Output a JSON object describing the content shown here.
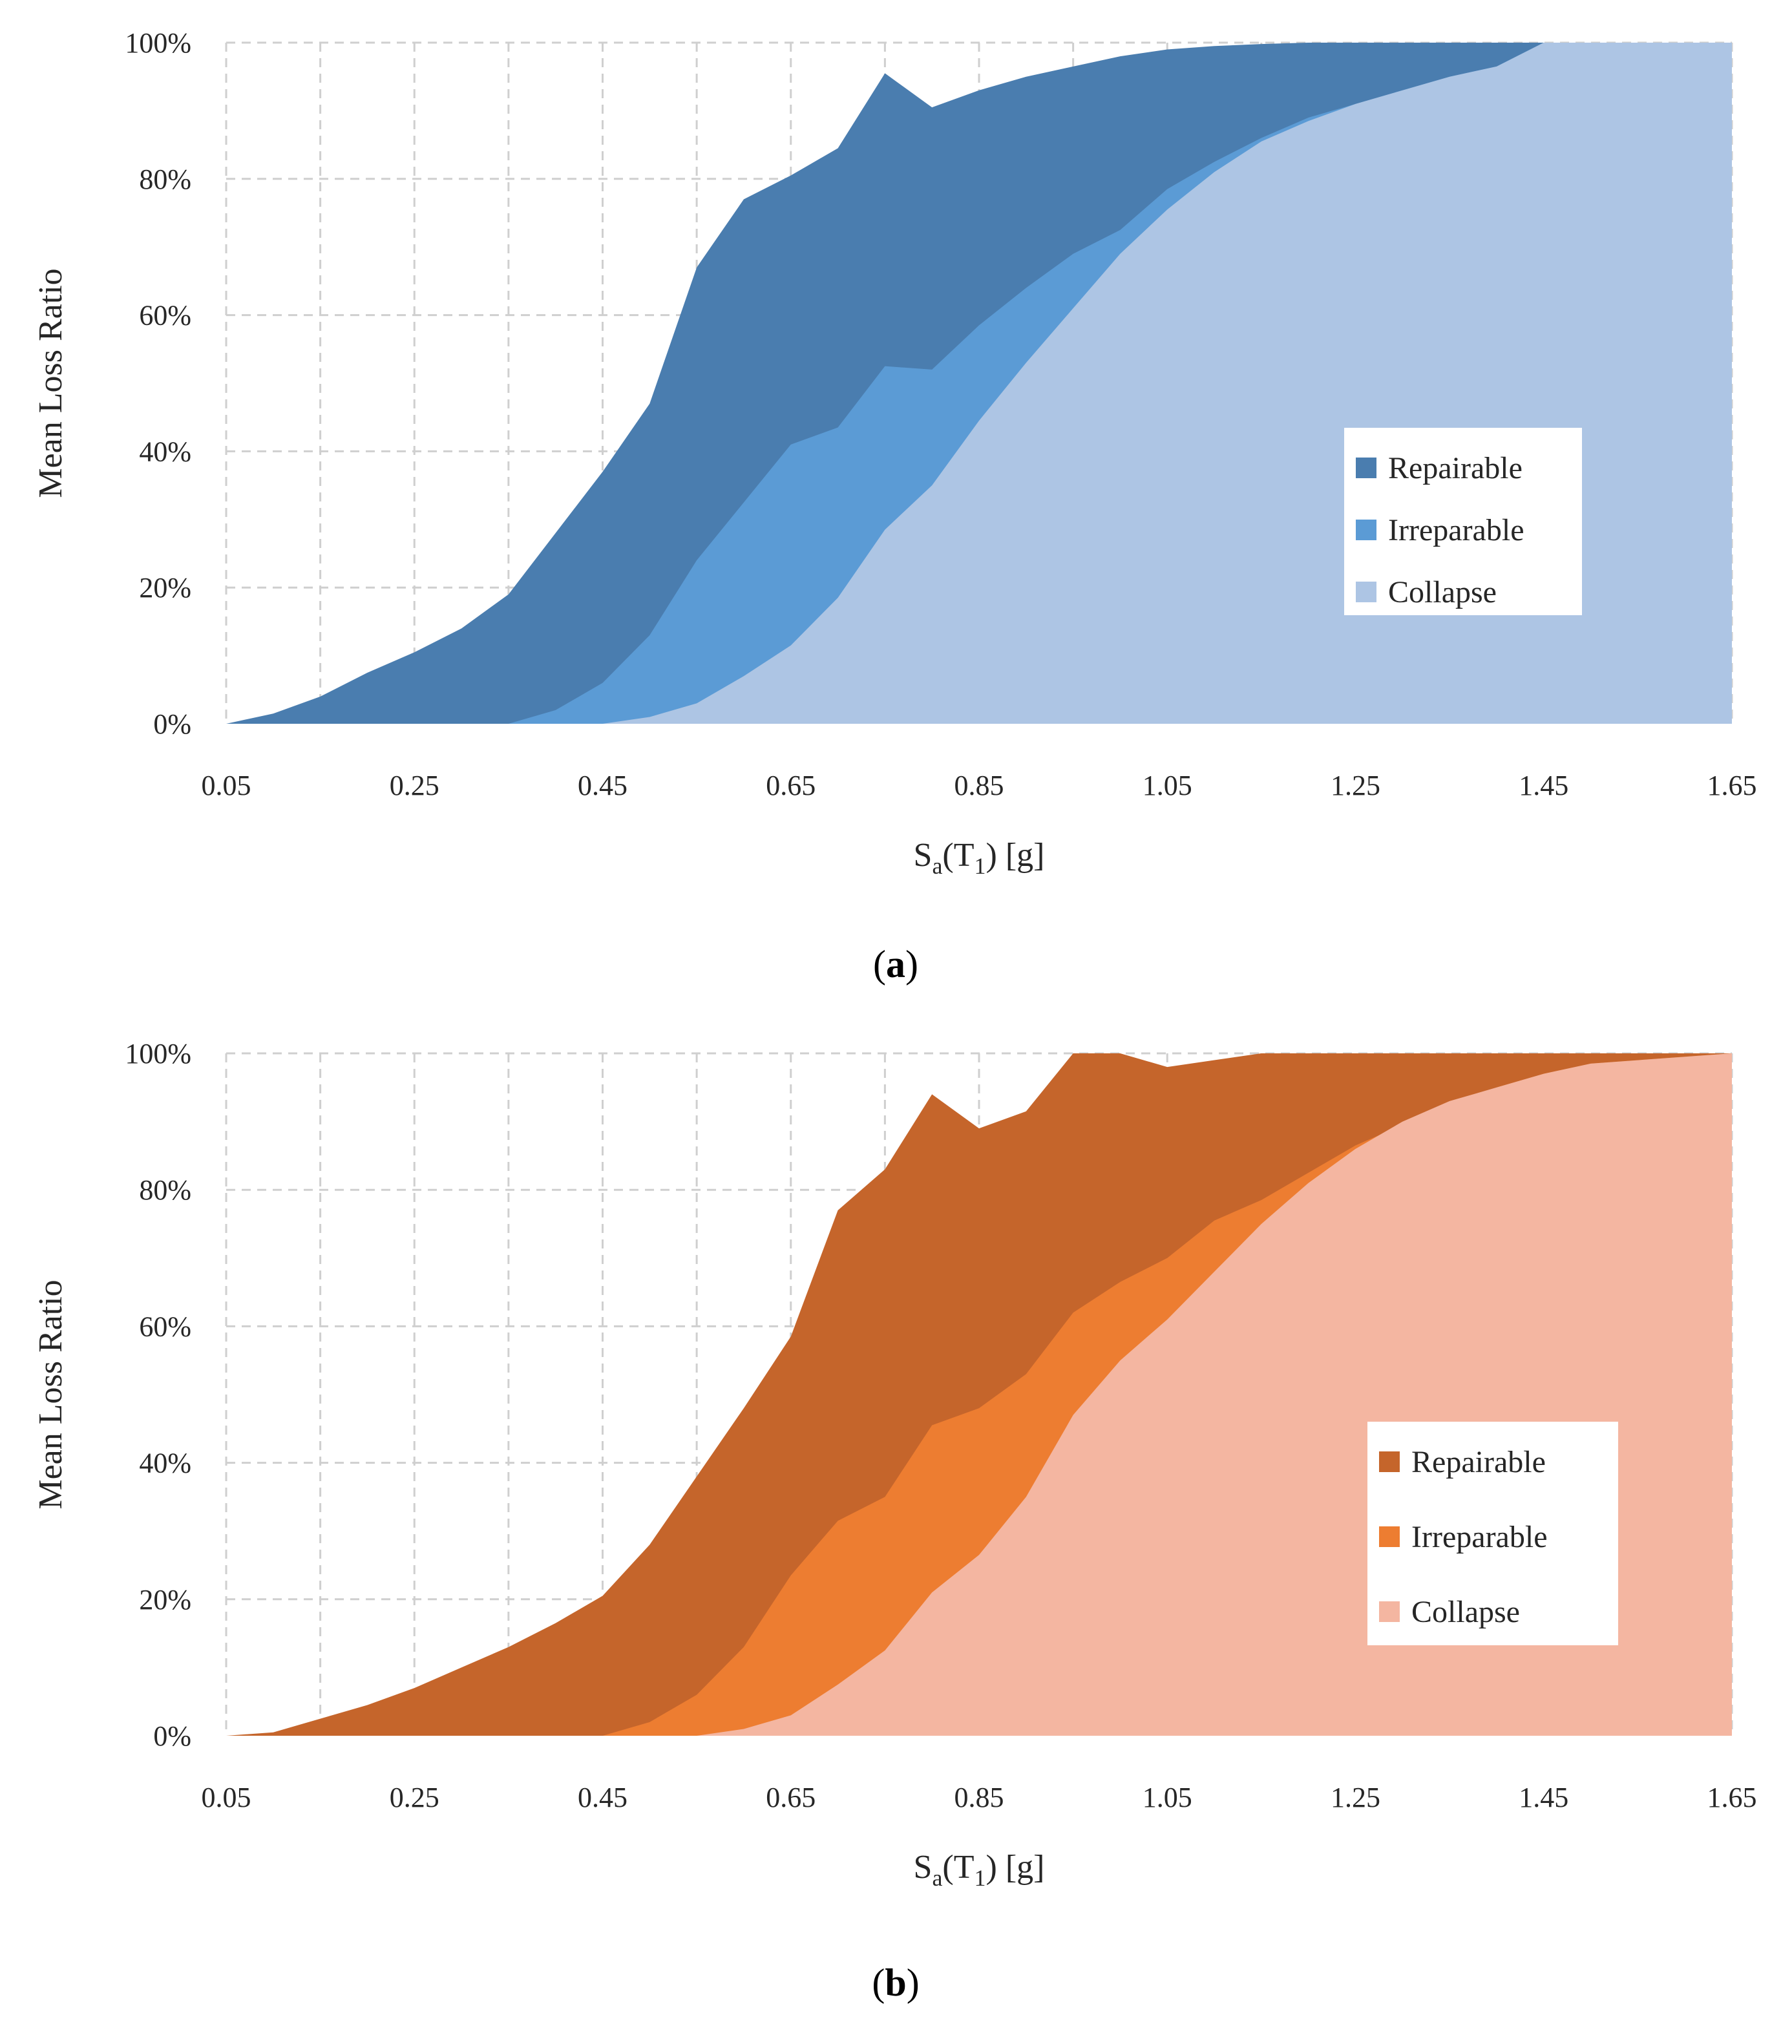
{
  "chart_data": [
    {
      "type": "area",
      "stacked": false,
      "caption_open": "(",
      "caption_label": "a",
      "caption_close": ")",
      "xlabel_main": "S",
      "xlabel_sub1": "a",
      "xlabel_mid": "(T",
      "xlabel_sub2": "1",
      "xlabel_end": ") [g]",
      "ylabel": "Mean Loss Ratio",
      "xlim": [
        0.05,
        1.65
      ],
      "ylim": [
        0,
        100
      ],
      "xticks": [
        "0.05",
        "0.25",
        "0.45",
        "0.65",
        "0.85",
        "1.05",
        "1.25",
        "1.45",
        "1.65"
      ],
      "yticks": [
        "0%",
        "20%",
        "40%",
        "60%",
        "80%",
        "100%"
      ],
      "legend_position": "right",
      "series": [
        {
          "name": "Repairable",
          "color": "#4a7daf",
          "x": [
            0.05,
            0.1,
            0.15,
            0.2,
            0.25,
            0.3,
            0.35,
            0.4,
            0.45,
            0.5,
            0.55,
            0.6,
            0.65,
            0.7,
            0.75,
            0.8,
            0.85,
            0.9,
            0.95,
            1.0,
            1.05,
            1.1,
            1.15,
            1.2,
            1.25,
            1.3,
            1.35,
            1.4,
            1.45,
            1.65
          ],
          "values": [
            0,
            1.5,
            4,
            7.5,
            10.5,
            14,
            19,
            28,
            37,
            47,
            67,
            77,
            80.5,
            84.5,
            95.5,
            90.5,
            93,
            95,
            96.5,
            98,
            99,
            99.5,
            99.8,
            100,
            100,
            100,
            100,
            100,
            100,
            100
          ]
        },
        {
          "name": "Irreparable",
          "color": "#5b9bd5",
          "x": [
            0.05,
            0.35,
            0.4,
            0.45,
            0.5,
            0.55,
            0.6,
            0.65,
            0.7,
            0.75,
            0.8,
            0.85,
            0.9,
            0.95,
            1.0,
            1.05,
            1.1,
            1.15,
            1.2,
            1.25,
            1.3,
            1.35,
            1.4,
            1.45,
            1.65
          ],
          "values": [
            0,
            0,
            2,
            6,
            13,
            24,
            32.5,
            41,
            43.5,
            52.5,
            52,
            58.5,
            64,
            69,
            72.5,
            78.5,
            82.5,
            86,
            89,
            91,
            93,
            95,
            96.5,
            100,
            100
          ]
        },
        {
          "name": "Collapse",
          "color": "#adc5e4",
          "x": [
            0.05,
            0.45,
            0.5,
            0.55,
            0.6,
            0.65,
            0.7,
            0.75,
            0.8,
            0.85,
            0.9,
            0.95,
            1.0,
            1.05,
            1.1,
            1.15,
            1.2,
            1.25,
            1.3,
            1.35,
            1.4,
            1.45,
            1.65
          ],
          "values": [
            0,
            0,
            1,
            3,
            7,
            11.5,
            18.5,
            28.5,
            35,
            44.5,
            53,
            61,
            69,
            75.5,
            81,
            85.5,
            88.5,
            91,
            93,
            95,
            96.5,
            100,
            100
          ]
        }
      ]
    },
    {
      "type": "area",
      "stacked": false,
      "caption_open": "(",
      "caption_label": "b",
      "caption_close": ")",
      "xlabel_main": "S",
      "xlabel_sub1": "a",
      "xlabel_mid": "(T",
      "xlabel_sub2": "1",
      "xlabel_end": ") [g]",
      "ylabel": "Mean Loss Ratio",
      "xlim": [
        0.05,
        1.65
      ],
      "ylim": [
        0,
        100
      ],
      "xticks": [
        "0.05",
        "0.25",
        "0.45",
        "0.65",
        "0.85",
        "1.05",
        "1.25",
        "1.45",
        "1.65"
      ],
      "yticks": [
        "0%",
        "20%",
        "40%",
        "60%",
        "80%",
        "100%"
      ],
      "legend_position": "right",
      "series": [
        {
          "name": "Repairable",
          "color": "#c5652b",
          "x": [
            0.05,
            0.1,
            0.15,
            0.2,
            0.25,
            0.3,
            0.35,
            0.4,
            0.45,
            0.5,
            0.55,
            0.6,
            0.65,
            0.7,
            0.75,
            0.8,
            0.85,
            0.9,
            0.95,
            1.0,
            1.05,
            1.1,
            1.15,
            1.2,
            1.25,
            1.3,
            1.35,
            1.4,
            1.45,
            1.5,
            1.65
          ],
          "values": [
            0,
            0.5,
            2.5,
            4.5,
            7,
            10,
            13,
            16.5,
            20.5,
            28,
            38,
            48,
            58.5,
            77,
            83,
            94,
            89,
            91.5,
            100,
            100,
            98,
            99,
            100,
            100,
            100,
            100,
            100,
            100,
            100,
            100,
            100
          ]
        },
        {
          "name": "Irreparable",
          "color": "#ed7d31",
          "x": [
            0.05,
            0.45,
            0.5,
            0.55,
            0.6,
            0.65,
            0.7,
            0.75,
            0.8,
            0.85,
            0.9,
            0.95,
            1.0,
            1.05,
            1.1,
            1.15,
            1.2,
            1.25,
            1.3,
            1.35,
            1.4,
            1.45,
            1.5,
            1.65
          ],
          "values": [
            0,
            0,
            2,
            6,
            13,
            23.5,
            31.5,
            35,
            45.5,
            48,
            53,
            62,
            66.5,
            70,
            75.5,
            78.5,
            82.5,
            86.5,
            89.5,
            92.5,
            95,
            97,
            98.5,
            100
          ]
        },
        {
          "name": "Collapse",
          "color": "#f4b6a1",
          "x": [
            0.05,
            0.55,
            0.6,
            0.65,
            0.7,
            0.75,
            0.8,
            0.85,
            0.9,
            0.95,
            1.0,
            1.05,
            1.1,
            1.15,
            1.2,
            1.25,
            1.3,
            1.35,
            1.4,
            1.45,
            1.5,
            1.65
          ],
          "values": [
            0,
            0,
            1,
            3,
            7.5,
            12.5,
            21,
            26.5,
            35,
            47,
            55,
            61,
            68,
            75,
            81,
            86,
            90,
            93,
            95,
            97,
            98.5,
            100
          ]
        }
      ]
    }
  ]
}
